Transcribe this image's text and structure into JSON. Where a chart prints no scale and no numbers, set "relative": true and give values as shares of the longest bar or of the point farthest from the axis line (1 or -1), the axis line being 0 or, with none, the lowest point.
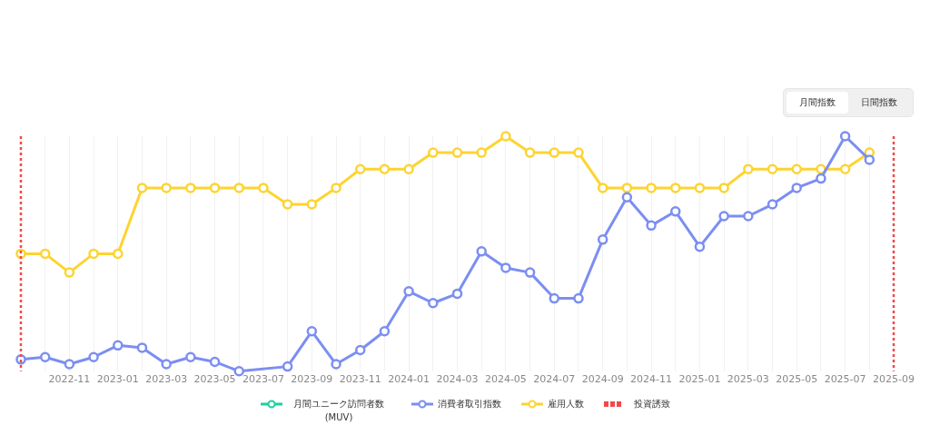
{
  "chart_data": {
    "type": "line",
    "relative": true,
    "marker": "circle",
    "line_style": "solid",
    "grid": "x",
    "legend": "bottom",
    "annotations": [
      "月間指数",
      "日間指数"
    ],
    "x": [
      "2022-09",
      "2022-10",
      "2022-11",
      "2022-12",
      "2023-01",
      "2023-02",
      "2023-03",
      "2023-04",
      "2023-05",
      "2023-06",
      "2023-07",
      "2023-08",
      "2023-09",
      "2023-10",
      "2023-11",
      "2023-12",
      "2024-01",
      "2024-02",
      "2024-03",
      "2024-04",
      "2024-05",
      "2024-06",
      "2024-07",
      "2024-08",
      "2024-09",
      "2024-10",
      "2024-11",
      "2024-12",
      "2025-01",
      "2025-02",
      "2025-03",
      "2025-04",
      "2025-05",
      "2025-06",
      "2025-07",
      "2025-08"
    ],
    "xlim": [
      "2022-09",
      "2025-09"
    ],
    "xticks": [
      {
        "value": "2022-10",
        "label": null
      },
      "2022-11",
      {
        "value": "2022-12",
        "label": null
      },
      "2023-01",
      {
        "value": "2023-02",
        "label": null
      },
      "2023-03",
      {
        "value": "2023-04",
        "label": null
      },
      "2023-05",
      {
        "value": "2023-06",
        "label": null
      },
      "2023-07",
      {
        "value": "2023-08",
        "label": null
      },
      "2023-09",
      {
        "value": "2023-10",
        "label": null
      },
      "2023-11",
      {
        "value": "2023-12",
        "label": null
      },
      "2024-01",
      {
        "value": "2024-02",
        "label": null
      },
      "2024-03",
      {
        "value": "2024-04",
        "label": null
      },
      "2024-05",
      {
        "value": "2024-06",
        "label": null
      },
      "2024-07",
      {
        "value": "2024-08",
        "label": null
      },
      "2024-09",
      {
        "value": "2024-10",
        "label": null
      },
      "2024-11",
      {
        "value": "2024-12",
        "label": null
      },
      "2025-01",
      {
        "value": "2025-02",
        "label": null
      },
      "2025-03",
      {
        "value": "2025-04",
        "label": null
      },
      "2025-05",
      {
        "value": "2025-06",
        "label": null
      },
      "2025-07",
      {
        "value": "2025-08",
        "label": null
      },
      "2025-09"
    ],
    "series": [
      {
        "name": "月間ユニーク訪問者数 (MUV)",
        "color": "#1fcf9c",
        "values": [
          null,
          null,
          null,
          null,
          null,
          null,
          null,
          null,
          null,
          null,
          null,
          null,
          null,
          null,
          null,
          null,
          null,
          null,
          null,
          null,
          null,
          null,
          null,
          null,
          null,
          null,
          null,
          null,
          null,
          null,
          null,
          null,
          null,
          null,
          null,
          null
        ]
      },
      {
        "name": "消費者取引指数",
        "color": "#7b8ef2",
        "x": [
          "2022-09",
          "2022-10",
          "2022-11",
          "2022-12",
          "2023-01",
          "2023-02",
          "2023-03",
          "2023-04",
          "2023-05",
          "2023-06",
          "2023-08",
          "2023-09",
          "2023-10",
          "2023-11",
          "2023-12",
          "2024-01",
          "2024-02",
          "2024-03",
          "2024-04",
          "2024-05",
          "2024-06",
          "2024-07",
          "2024-08",
          "2024-09",
          "2024-10",
          "2024-11",
          "2024-12",
          "2025-01",
          "2025-02",
          "2025-03",
          "2025-04",
          "2025-05",
          "2025-06",
          "2025-07",
          "2025-08"
        ],
        "values": [
          0.05,
          0.06,
          0.03,
          0.06,
          0.11,
          0.1,
          0.03,
          0.06,
          0.04,
          0,
          0.02,
          0.17,
          0.03,
          0.09,
          0.17,
          0.34,
          0.29,
          0.33,
          0.51,
          0.44,
          0.42,
          0.31,
          0.31,
          0.56,
          0.74,
          0.62,
          0.68,
          0.53,
          0.66,
          0.66,
          0.71,
          0.78,
          0.82,
          1.0,
          0.9
        ]
      },
      {
        "name": "雇用人数",
        "color": "#fdd430",
        "values": [
          0.5,
          0.5,
          0.42,
          0.5,
          0.5,
          0.78,
          0.78,
          0.78,
          0.78,
          0.78,
          0.78,
          0.71,
          0.71,
          0.78,
          0.86,
          0.86,
          0.86,
          0.93,
          0.93,
          0.93,
          1.0,
          0.93,
          0.93,
          0.93,
          0.78,
          0.78,
          0.78,
          0.78,
          0.78,
          0.78,
          0.86,
          0.86,
          0.86,
          0.86,
          0.86,
          0.93
        ]
      }
    ],
    "ref_lines": [
      {
        "axis": "x",
        "value": "2022-09",
        "label": "投資誘致",
        "color": "#f44848",
        "line_style": "dotted"
      },
      {
        "axis": "x",
        "value": "2025-09",
        "color": "#f44848",
        "line_style": "dotted"
      }
    ]
  }
}
